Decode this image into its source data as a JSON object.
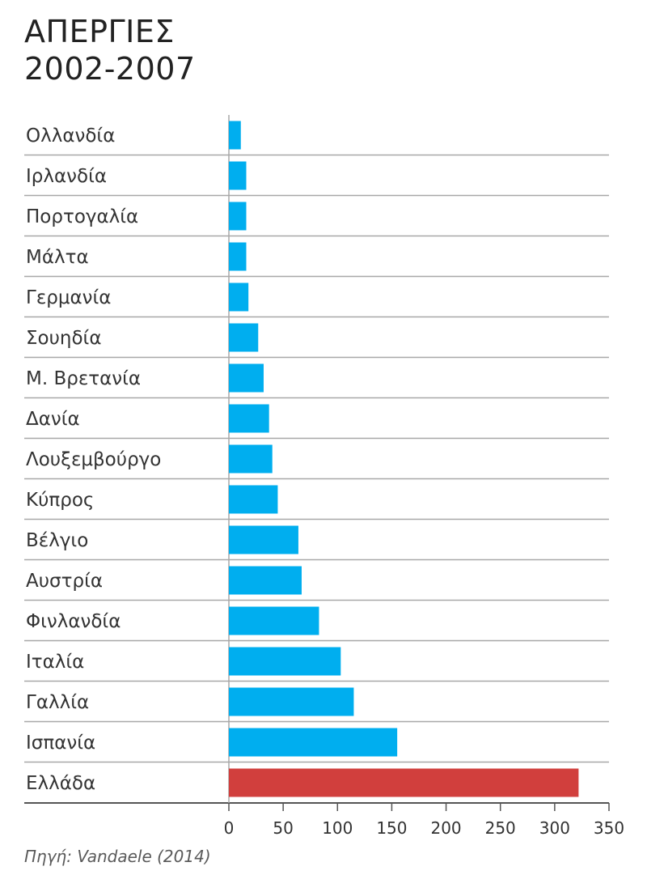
{
  "title_line1": "ΑΠΕΡΓΙΕΣ",
  "title_line2": "2002-2007",
  "source": "Πηγή: Vandaele (2014)",
  "chart_data": {
    "type": "bar",
    "orientation": "horizontal",
    "title": "ΑΠΕΡΓΙΕΣ 2002-2007",
    "categories": [
      "Ολλανδία",
      "Ιρλανδία",
      "Πορτογαλία",
      "Μάλτα",
      "Γερμανία",
      "Σουηδία",
      "Μ. Βρετανία",
      "Δανία",
      "Λουξεμβούργο",
      "Κύπρος",
      "Βέλγιο",
      "Αυστρία",
      "Φινλανδία",
      "Ιταλία",
      "Γαλλία",
      "Ισπανία",
      "Ελλάδα"
    ],
    "values": [
      11,
      16,
      16,
      16,
      18,
      27,
      32,
      37,
      40,
      45,
      64,
      67,
      83,
      103,
      115,
      155,
      322
    ],
    "highlight_category": "Ελλάδα",
    "colors": {
      "default": "#00aeef",
      "highlight": "#d13f3d",
      "grid": "#a8a8a8",
      "axis": "#555555"
    },
    "xlim": [
      0,
      350
    ],
    "xticks": [
      0,
      50,
      100,
      150,
      200,
      250,
      300,
      350
    ],
    "grid": true
  }
}
